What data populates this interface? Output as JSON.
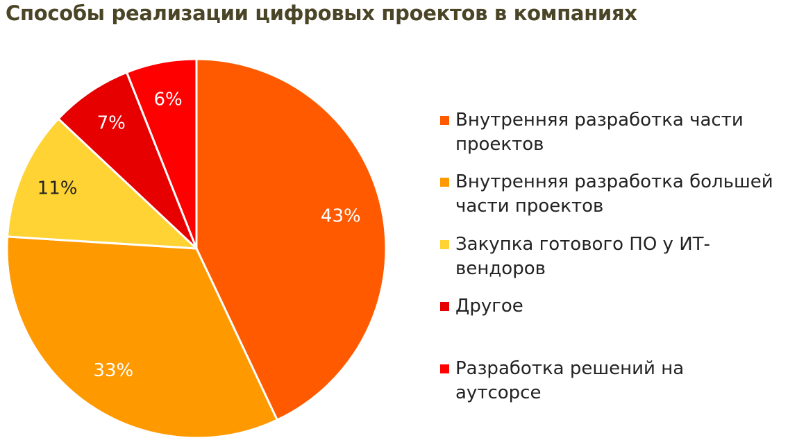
{
  "title": "Способы реализации цифровых проектов в компаниях",
  "chart_data": {
    "type": "pie",
    "title": "Способы реализации цифровых проектов в компаниях",
    "slices": [
      {
        "label": "Внутренняя разработка части проектов",
        "value": 43,
        "display": "43%",
        "color": "#ff5a00",
        "label_color": "#ffffff"
      },
      {
        "label": "Внутренняя разработка большей части проектов",
        "value": 33,
        "display": "33%",
        "color": "#ff9900",
        "label_color": "#ffffff"
      },
      {
        "label": "Закупка готового ПО у ИТ-вендоров",
        "value": 11,
        "display": "11%",
        "color": "#ffd333",
        "label_color": "#222222"
      },
      {
        "label": "Другое",
        "value": 7,
        "display": "7%",
        "color": "#e60000",
        "label_color": "#ffffff"
      },
      {
        "label": "Разработка решений на аутсорсе",
        "value": 6,
        "display": "6%",
        "color": "#ff0000",
        "label_color": "#ffffff"
      }
    ],
    "legend_position": "right"
  },
  "legend": [
    {
      "line1": "Внутренняя разработка части",
      "line2": "проектов"
    },
    {
      "line1": "Внутренняя разработка большей",
      "line2": "части проектов"
    },
    {
      "line1": "Закупка готового ПО у ИТ-",
      "line2": "вендоров"
    },
    {
      "line1": "Другое",
      "line2": ""
    },
    {
      "line1": "Разработка решений на",
      "line2": "аутсорсе"
    }
  ]
}
